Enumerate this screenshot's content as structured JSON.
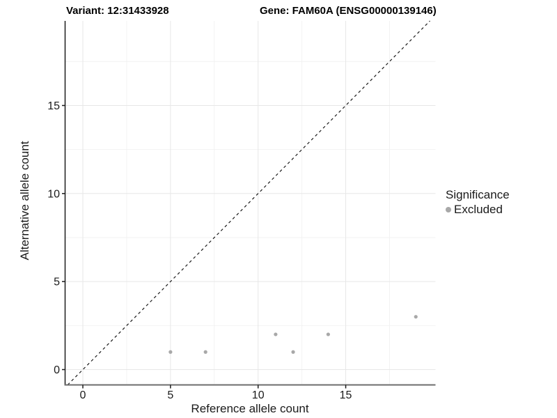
{
  "header": {
    "variant_title": "Variant: 12:31433928",
    "gene_title": "Gene: FAM60A (ENSG00000139146)"
  },
  "chart_data": {
    "type": "scatter",
    "titles": [
      "Variant: 12:31433928",
      "Gene: FAM60A (ENSG00000139146)"
    ],
    "xlabel": "Reference allele count",
    "ylabel": "Alternative allele count",
    "xlim": [
      -1,
      20.1
    ],
    "ylim": [
      -0.9,
      19.8
    ],
    "x_ticks": [
      0,
      5,
      10,
      15
    ],
    "y_ticks": [
      0,
      5,
      10,
      15
    ],
    "minor_ticks": [
      2.5,
      7.5,
      12.5,
      17.5
    ],
    "grid": true,
    "series": [
      {
        "name": "Excluded",
        "color": "#a8a8a8",
        "points": [
          [
            5,
            1
          ],
          [
            7,
            1
          ],
          [
            11,
            2
          ],
          [
            12,
            1
          ],
          [
            14,
            2
          ],
          [
            19,
            3
          ]
        ]
      }
    ],
    "reference_line": {
      "type": "identity",
      "style": "dashed",
      "color": "#1a1a1a"
    },
    "legend": {
      "title": "Significance",
      "position": "right",
      "items": [
        {
          "label": "Excluded",
          "color": "#a8a8a8"
        }
      ]
    },
    "colors": {
      "point": "#a8a8a8",
      "grid_major": "#e7e7e7",
      "grid_minor": "#f2f2f2",
      "axis_left": "#1a1a1a",
      "axis_bottom": "#6e6e6e",
      "tick": "#1a1a1a",
      "text": "#1a1a1a"
    }
  }
}
